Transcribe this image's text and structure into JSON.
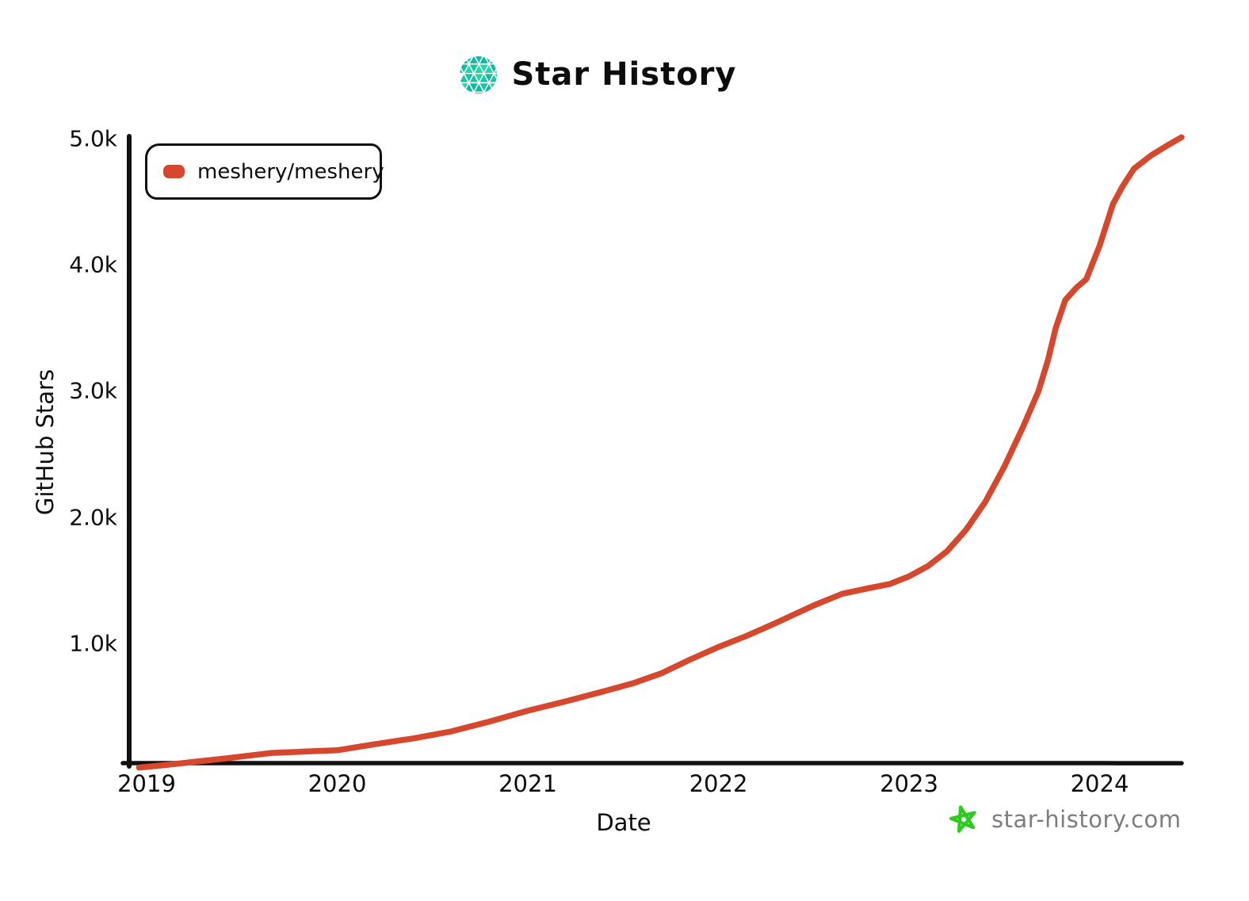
{
  "header": {
    "title": "Star History",
    "logo_icon": "star-history-logo-icon",
    "logo_colors": [
      "#0fb9a4",
      "#23d6a8",
      "#19c4a6"
    ]
  },
  "legend": {
    "items": [
      {
        "label": "meshery/meshery",
        "color": "#d5482d"
      }
    ]
  },
  "watermark": {
    "label": "star-history.com",
    "icon": "green-star-icon",
    "text_color": "#7d7d7d",
    "star_color": "#2bcc1e"
  },
  "axis": {
    "color": "#111111"
  },
  "chart_data": {
    "type": "line",
    "title": "Star History",
    "xlabel": "Date",
    "ylabel": "GitHub Stars",
    "grid": false,
    "legend_position": "top-left",
    "x_ticks": [
      "2019",
      "2020",
      "2021",
      "2022",
      "2023",
      "2024"
    ],
    "x_tick_values": [
      2019,
      2020,
      2021,
      2022,
      2023,
      2024
    ],
    "y_ticks": [
      "1.0k",
      "2.0k",
      "3.0k",
      "4.0k",
      "5.0k"
    ],
    "y_tick_values": [
      1000,
      2000,
      3000,
      4000,
      5000
    ],
    "xlim": [
      2018.95,
      2024.55
    ],
    "ylim": [
      0,
      5100
    ],
    "series": [
      {
        "name": "meshery/meshery",
        "color": "#d5482d",
        "points": [
          [
            2018.96,
            15
          ],
          [
            2019.1,
            35
          ],
          [
            2019.25,
            60
          ],
          [
            2019.4,
            85
          ],
          [
            2019.55,
            112
          ],
          [
            2019.65,
            130
          ],
          [
            2019.8,
            140
          ],
          [
            2020.0,
            152
          ],
          [
            2020.2,
            200
          ],
          [
            2020.4,
            246
          ],
          [
            2020.6,
            302
          ],
          [
            2020.8,
            380
          ],
          [
            2021.0,
            465
          ],
          [
            2021.2,
            540
          ],
          [
            2021.4,
            620
          ],
          [
            2021.55,
            682
          ],
          [
            2021.7,
            762
          ],
          [
            2021.85,
            870
          ],
          [
            2022.0,
            970
          ],
          [
            2022.15,
            1060
          ],
          [
            2022.3,
            1160
          ],
          [
            2022.5,
            1300
          ],
          [
            2022.65,
            1392
          ],
          [
            2022.8,
            1440
          ],
          [
            2022.9,
            1470
          ],
          [
            2023.0,
            1530
          ],
          [
            2023.1,
            1612
          ],
          [
            2023.2,
            1730
          ],
          [
            2023.3,
            1900
          ],
          [
            2023.4,
            2120
          ],
          [
            2023.5,
            2400
          ],
          [
            2023.6,
            2720
          ],
          [
            2023.68,
            3000
          ],
          [
            2023.73,
            3250
          ],
          [
            2023.77,
            3500
          ],
          [
            2023.82,
            3720
          ],
          [
            2023.88,
            3820
          ],
          [
            2023.93,
            3885
          ],
          [
            2024.0,
            4150
          ],
          [
            2024.07,
            4480
          ],
          [
            2024.12,
            4620
          ],
          [
            2024.18,
            4760
          ],
          [
            2024.27,
            4865
          ],
          [
            2024.35,
            4940
          ],
          [
            2024.43,
            5010
          ]
        ]
      }
    ]
  }
}
